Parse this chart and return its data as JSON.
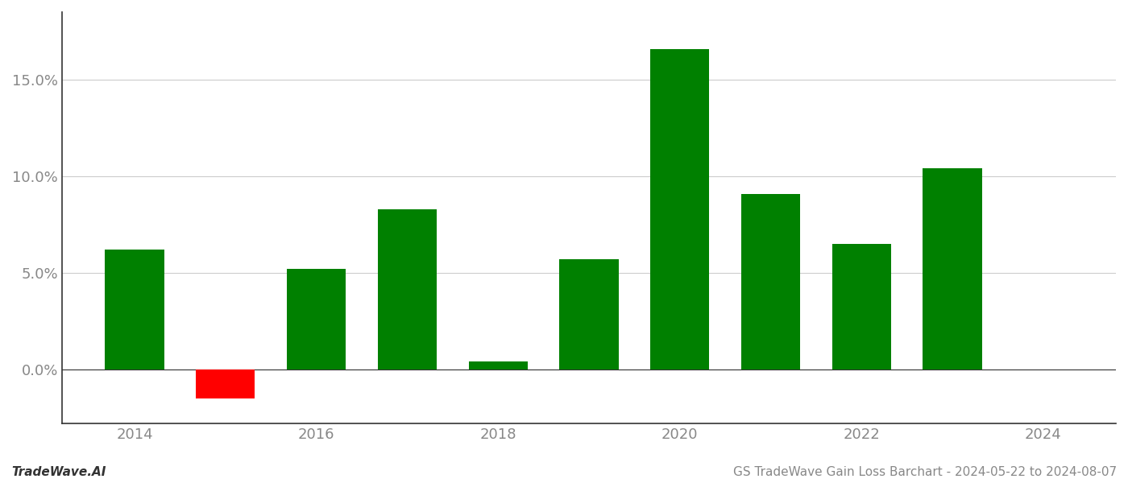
{
  "years": [
    2014,
    2015,
    2016,
    2017,
    2018,
    2019,
    2020,
    2021,
    2022,
    2023
  ],
  "values": [
    0.062,
    -0.015,
    0.052,
    0.083,
    0.004,
    0.057,
    0.166,
    0.091,
    0.065,
    0.104
  ],
  "bar_colors": [
    "#008000",
    "#ff0000",
    "#008000",
    "#008000",
    "#008000",
    "#008000",
    "#008000",
    "#008000",
    "#008000",
    "#008000"
  ],
  "yticks": [
    0.0,
    0.05,
    0.1,
    0.15
  ],
  "ytick_labels": [
    "0.0%",
    "5.0%",
    "10.0%",
    "15.0%"
  ],
  "ylim": [
    -0.028,
    0.185
  ],
  "xlim": [
    2013.2,
    2024.8
  ],
  "xticks": [
    2014,
    2016,
    2018,
    2020,
    2022,
    2024
  ],
  "footer_left": "TradeWave.AI",
  "footer_right": "GS TradeWave Gain Loss Barchart - 2024-05-22 to 2024-08-07",
  "bar_width": 0.65,
  "background_color": "#ffffff",
  "grid_color": "#cccccc",
  "text_color": "#888888",
  "spine_color": "#333333"
}
